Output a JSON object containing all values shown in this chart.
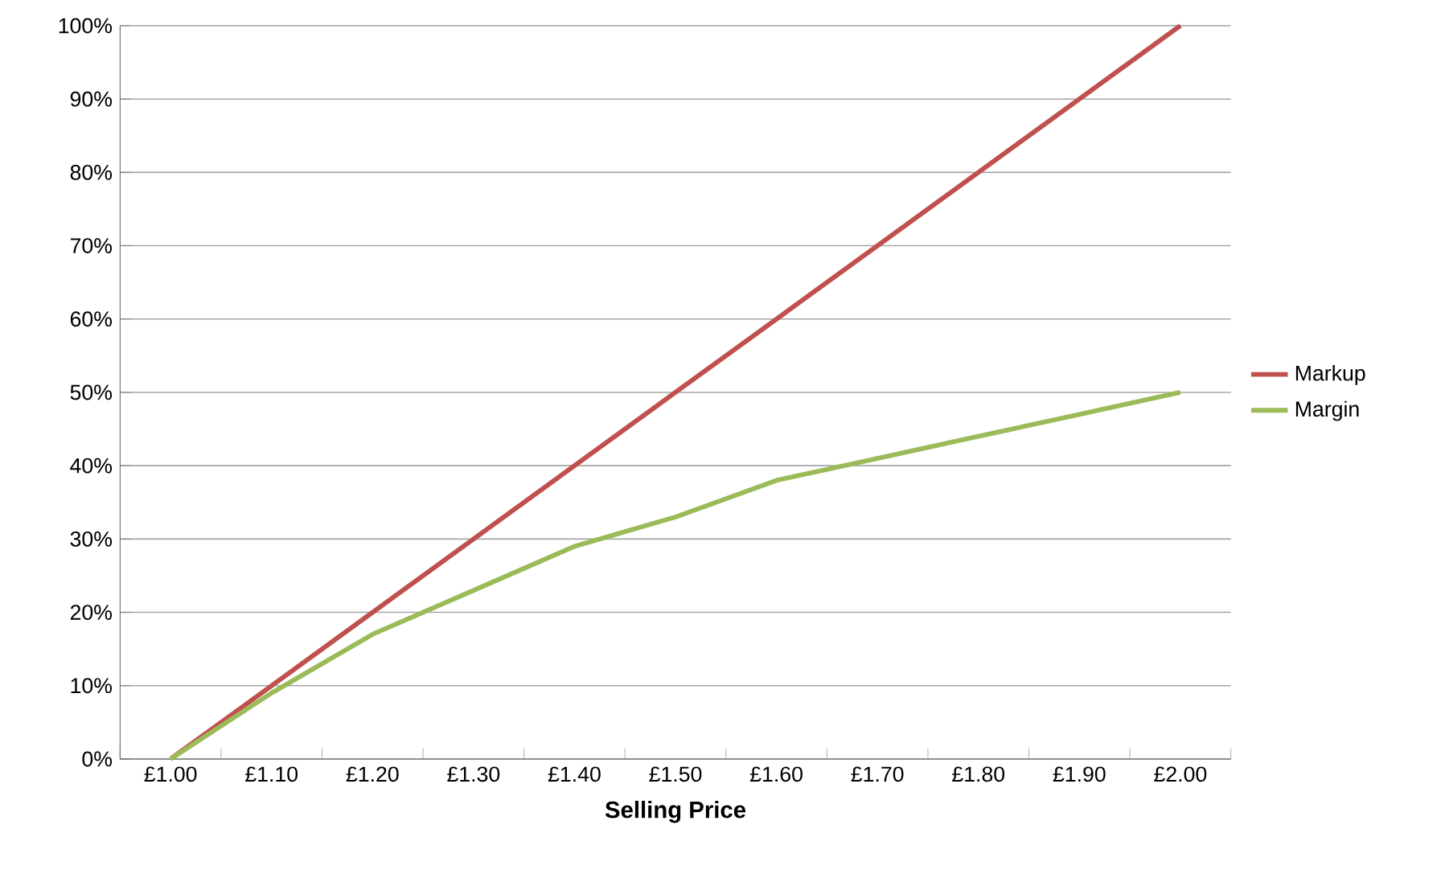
{
  "chart_data": {
    "type": "line",
    "xlabel": "Selling Price",
    "categories": [
      "£1.00",
      "£1.10",
      "£1.20",
      "£1.30",
      "£1.40",
      "£1.50",
      "£1.60",
      "£1.70",
      "£1.80",
      "£1.90",
      "£2.00"
    ],
    "series": [
      {
        "name": "Markup",
        "color": "#c0504d",
        "values": [
          0,
          10,
          20,
          30,
          40,
          50,
          60,
          70,
          80,
          90,
          100
        ]
      },
      {
        "name": "Margin",
        "color": "#9bbb59",
        "values": [
          0,
          9,
          17,
          23,
          29,
          33,
          38,
          41,
          44,
          47,
          50
        ]
      }
    ],
    "ylim": [
      0,
      100
    ],
    "yticks": [
      {
        "value": 0,
        "label": "0%"
      },
      {
        "value": 10,
        "label": "10%"
      },
      {
        "value": 20,
        "label": "20%"
      },
      {
        "value": 30,
        "label": "30%"
      },
      {
        "value": 40,
        "label": "40%"
      },
      {
        "value": 50,
        "label": "50%"
      },
      {
        "value": 60,
        "label": "60%"
      },
      {
        "value": 70,
        "label": "70%"
      },
      {
        "value": 80,
        "label": "80%"
      },
      {
        "value": 90,
        "label": "90%"
      },
      {
        "value": 100,
        "label": "100%"
      }
    ],
    "grid": "y",
    "legend": "right"
  }
}
